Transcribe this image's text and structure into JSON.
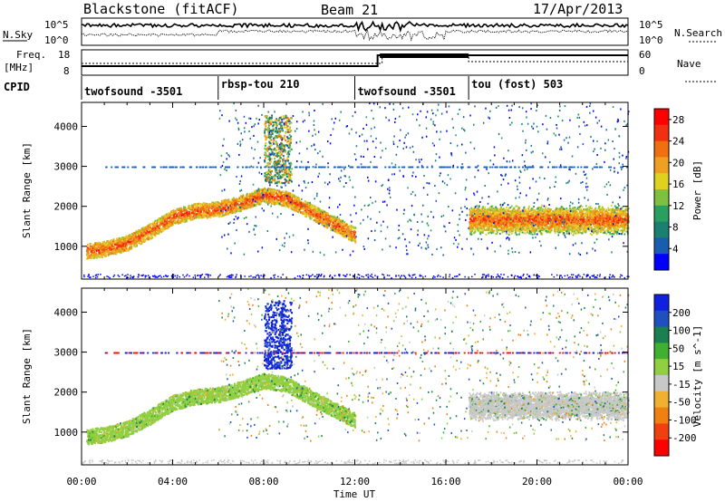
{
  "header": {
    "station": "Blackstone (fitACF)",
    "beam": "Beam 21",
    "date": "17/Apr/2013"
  },
  "noise_panel": {
    "left_label": "N.Sky",
    "left_ticks": [
      "10^5",
      "10^0"
    ],
    "right_label": "N.Search",
    "right_ticks": [
      "10^5",
      "10^0"
    ]
  },
  "freq_panel": {
    "left_label_1": "Freq.",
    "left_label_2": "[MHz]",
    "left_ticks": [
      "18",
      "8"
    ],
    "right_label": "Nave",
    "right_ticks": [
      "60",
      "0"
    ]
  },
  "cpid": {
    "label": "CPID",
    "modes": [
      {
        "name": "twofsound -3501",
        "start_hour": 0
      },
      {
        "name": "rbsp-tou 210",
        "start_hour": 6
      },
      {
        "name": "twofsound -3501",
        "start_hour": 12
      },
      {
        "name": "tou (fost) 503",
        "start_hour": 17
      }
    ]
  },
  "colors": {
    "power": [
      "#0000ff",
      "#1a5cb0",
      "#1a8070",
      "#2aa060",
      "#80c040",
      "#e0d020",
      "#f0a020",
      "#f07010",
      "#f03010",
      "#ff0000"
    ],
    "velocity": [
      "#1020e0",
      "#2050c0",
      "#1a8050",
      "#40b030",
      "#90d040",
      "#c8c8c8",
      "#f0b030",
      "#f08010",
      "#f04010",
      "#ff0000"
    ]
  },
  "chart_data": [
    {
      "type": "heatmap",
      "panel": "power",
      "title": "",
      "xlabel": "Time UT",
      "ylabel": "Slant Range [km]",
      "x_ticks": [
        "00:00",
        "04:00",
        "08:00",
        "12:00",
        "16:00",
        "20:00",
        "00:00"
      ],
      "x_range_hours": [
        0,
        24
      ],
      "ylim": [
        180,
        4600
      ],
      "y_ticks": [
        1000,
        2000,
        3000,
        4000
      ],
      "colorbar_label": "Power [dB]",
      "colorbar_ticks": [
        4,
        8,
        12,
        16,
        20,
        24,
        28
      ],
      "colorbar_range": [
        0,
        30
      ],
      "main_echo_band": {
        "hours": [
          0.2,
          1.0,
          2.0,
          3.0,
          4.0,
          5.0,
          6.0,
          7.0,
          8.0,
          9.0,
          10.0,
          11.0,
          12.0
        ],
        "range_km": [
          900,
          950,
          1100,
          1400,
          1750,
          1900,
          1950,
          2100,
          2300,
          2200,
          1900,
          1600,
          1300
        ],
        "value": 24
      },
      "late_band": {
        "hours": [
          17,
          24
        ],
        "range_km": [
          1550,
          1800
        ],
        "value": 20
      },
      "high_patch": {
        "hours": [
          8.0,
          9.2
        ],
        "range_km": [
          2600,
          4300
        ],
        "value": 12
      }
    },
    {
      "type": "heatmap",
      "panel": "velocity",
      "title": "",
      "xlabel": "Time UT",
      "ylabel": "Slant Range [km]",
      "x_ticks": [
        "00:00",
        "04:00",
        "08:00",
        "12:00",
        "16:00",
        "20:00",
        "00:00"
      ],
      "x_range_hours": [
        0,
        24
      ],
      "ylim": [
        180,
        4600
      ],
      "y_ticks": [
        1000,
        2000,
        3000,
        4000
      ],
      "colorbar_label": "Velocity [m s^-1]",
      "colorbar_ticks": [
        200,
        100,
        50,
        15,
        -15,
        -50,
        -100,
        -200
      ],
      "main_echo_band": {
        "hours": [
          0.2,
          1.0,
          2.0,
          3.0,
          4.0,
          5.0,
          6.0,
          7.0,
          8.0,
          9.0,
          10.0,
          11.0,
          12.0
        ],
        "range_km": [
          900,
          950,
          1100,
          1400,
          1750,
          1900,
          1950,
          2100,
          2300,
          2200,
          1900,
          1600,
          1300
        ],
        "value": 0
      },
      "late_band": {
        "hours": [
          17,
          24
        ],
        "range_km": [
          1550,
          1800
        ],
        "value": 0
      },
      "high_patch": {
        "hours": [
          8.0,
          9.2
        ],
        "range_km": [
          2600,
          4300
        ],
        "value": 200
      }
    }
  ]
}
